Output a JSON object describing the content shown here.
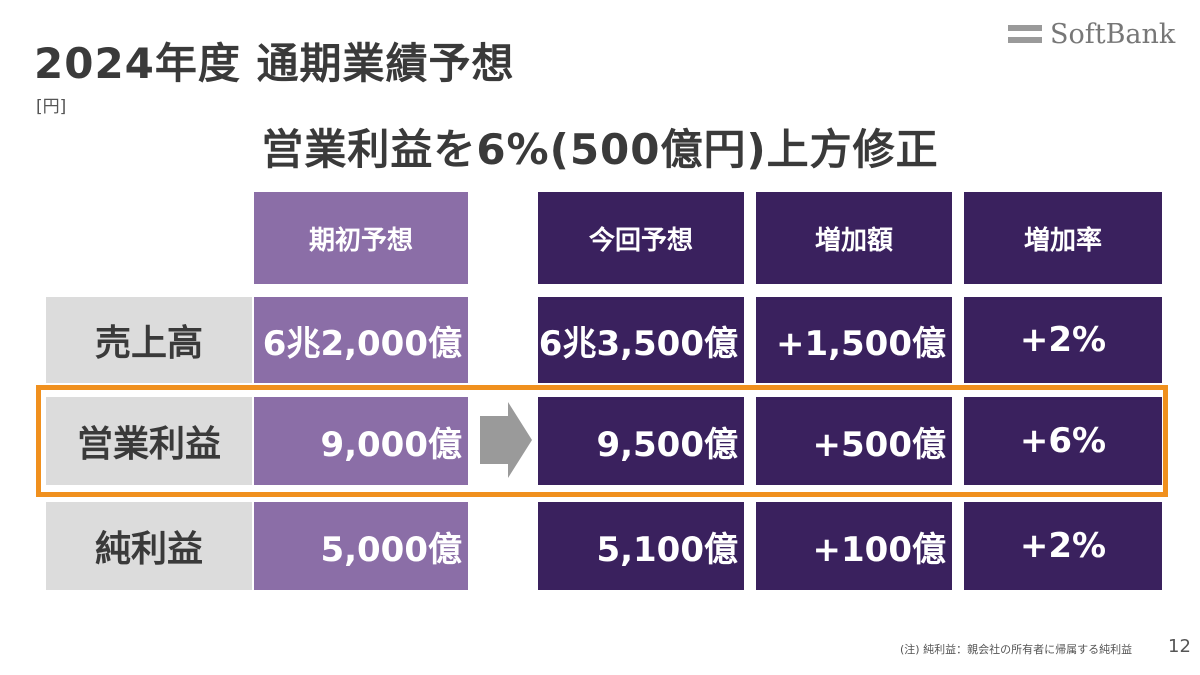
{
  "title": "2024年度 通期業績予想",
  "unit": "[円]",
  "headline": "営業利益を6%(500億円)上方修正",
  "logo": {
    "text": "SoftBank"
  },
  "table": {
    "headers": [
      "期初予想",
      "今回予想",
      "増加額",
      "増加率"
    ],
    "rows": [
      {
        "label": "売上高",
        "initial": "6兆2,000億",
        "current": "6兆3,500億",
        "increase": "+1,500億",
        "rate": "+2%"
      },
      {
        "label": "営業利益",
        "initial": "9,000億",
        "current": "9,500億",
        "increase": "+500億",
        "rate": "+6%"
      },
      {
        "label": "純利益",
        "initial": "5,000億",
        "current": "5,100億",
        "increase": "+100億",
        "rate": "+2%"
      }
    ],
    "highlighted_row": 1
  },
  "footnote": "(注) 純利益：親会社の所有者に帰属する純利益",
  "page_number": "12",
  "colors": {
    "initial_column": "#8b6ea7",
    "current_columns": "#3a215e",
    "row_label": "#dcdcdc",
    "highlight_border": "#f0901e",
    "arrow": "#9a9a9a"
  }
}
